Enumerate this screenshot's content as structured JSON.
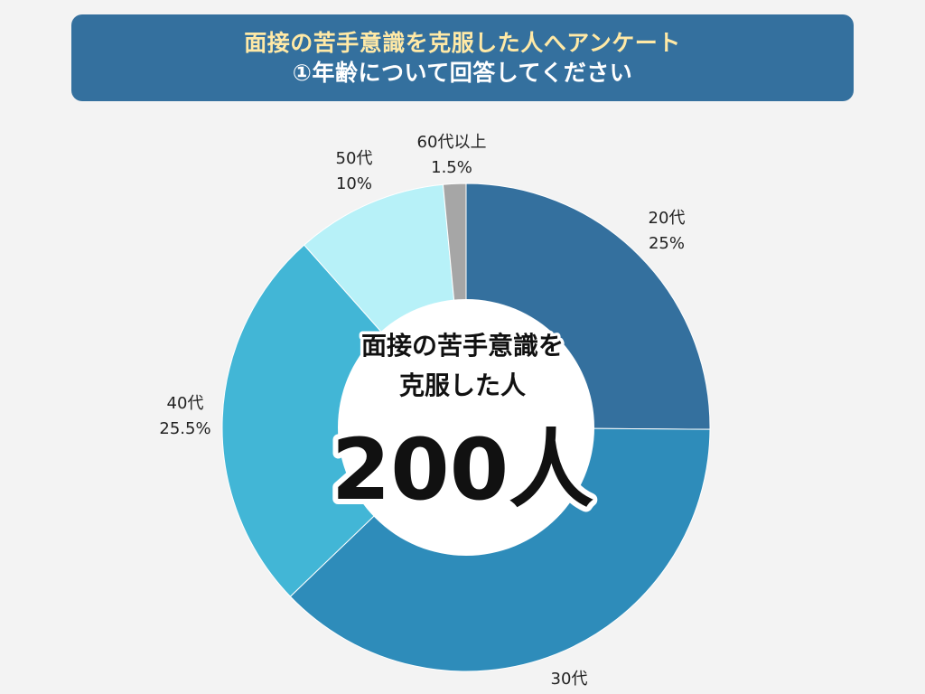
{
  "title": {
    "line1": "面接の苦手意識を克服した人へアンケート",
    "line2": "①年齢について回答してください"
  },
  "center": {
    "line1": "面接の苦手意識を",
    "line2": "克服した人",
    "count": "200人"
  },
  "chart_data": {
    "type": "pie",
    "variant": "donut",
    "unit": "%",
    "total_respondents": 200,
    "slices": [
      {
        "label": "20代",
        "value": 25,
        "value_text": "25%",
        "color": "#34709e"
      },
      {
        "label": "30代",
        "value": 37.5,
        "value_text": "",
        "color": "#2e8cba"
      },
      {
        "label": "40代",
        "value": 25.5,
        "value_text": "25.5%",
        "color": "#42b6d6"
      },
      {
        "label": "50代",
        "value": 10,
        "value_text": "10%",
        "color": "#b7f1f8"
      },
      {
        "label": "60代以上",
        "value": 1.5,
        "value_text": "1.5%",
        "color": "#a6a6a6"
      }
    ]
  },
  "colors": {
    "background": "#f3f3f3",
    "title_bg": "#34709e",
    "title_line1": "#ffe9a6",
    "title_line2": "#ffffff",
    "center_hole": "#ffffff",
    "center_text": "#111111"
  }
}
